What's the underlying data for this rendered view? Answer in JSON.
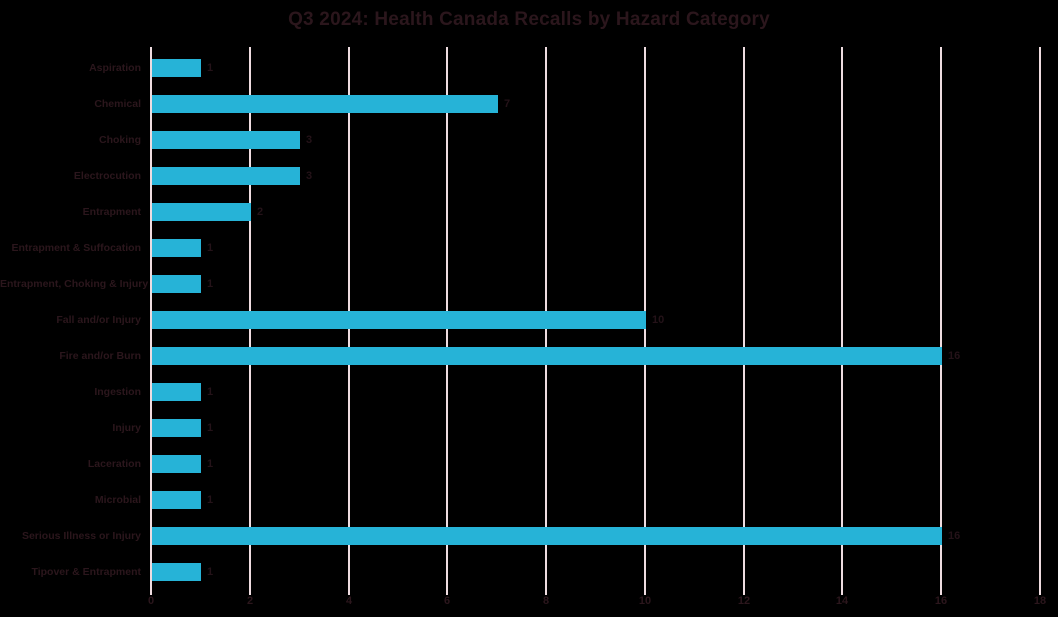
{
  "chart_data": {
    "type": "bar",
    "orientation": "horizontal",
    "title": "Q3 2024: Health Canada Recalls by Hazard Category",
    "categories": [
      "Aspiration",
      "Chemical",
      "Choking",
      "Electrocution",
      "Entrapment",
      "Entrapment & Suffocation",
      "Entrapment, Choking & Injury",
      "Fall and/or Injury",
      "Fire and/or Burn",
      "Ingestion",
      "Injury",
      "Laceration",
      "Microbial",
      "Serious Illness or Injury",
      "Tipover & Entrapment"
    ],
    "values": [
      1,
      7,
      3,
      3,
      2,
      1,
      1,
      10,
      16,
      1,
      1,
      1,
      1,
      16,
      1
    ],
    "data_labels_shown": true,
    "xlabel": "",
    "ylabel": "",
    "xlim": [
      0,
      18
    ],
    "xticks": [
      0,
      2,
      4,
      6,
      8,
      10,
      12,
      14,
      16,
      18
    ],
    "grid": "vertical-gridlines-on",
    "legend": "none",
    "colors": {
      "background": "#000000",
      "bar_fill": "#26b3d7",
      "gridline": "#eedce0",
      "title_text": "#2b161c",
      "axis_text": "#2b161c",
      "data_label_text": "#241218"
    }
  }
}
